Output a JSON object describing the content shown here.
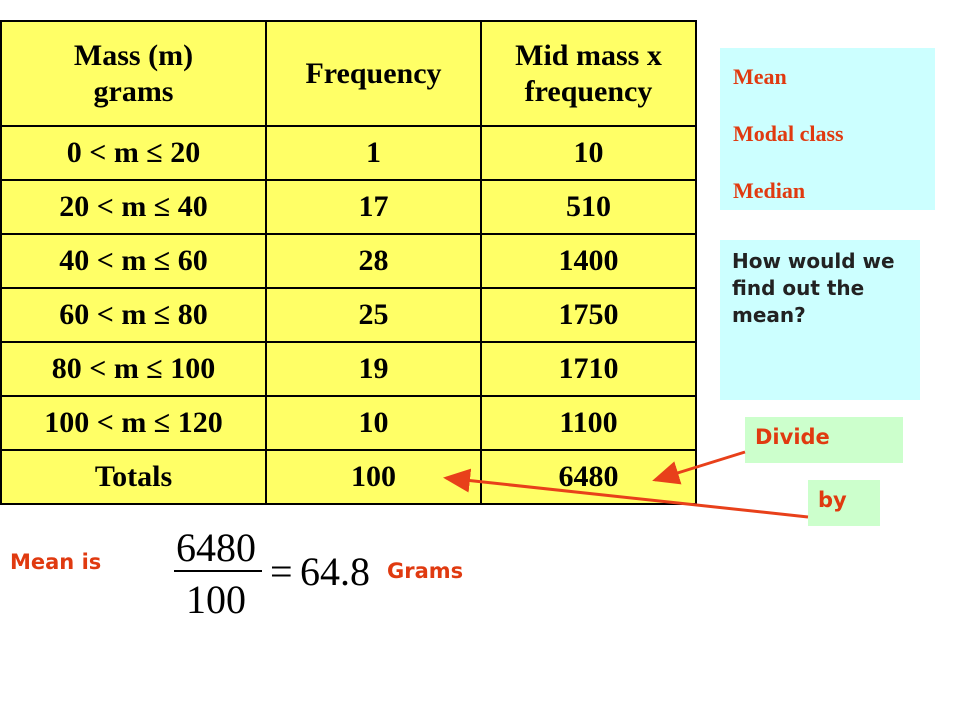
{
  "table": {
    "header": [
      "Mass (m) grams",
      "Frequency",
      "Mid mass x frequency"
    ],
    "rows": [
      [
        "0 < m ≤ 20",
        1,
        10
      ],
      [
        "20 < m ≤ 40",
        17,
        510
      ],
      [
        "40 < m ≤ 60",
        28,
        1400
      ],
      [
        "60 < m ≤ 80",
        25,
        1750
      ],
      [
        "80 < m ≤ 100",
        19,
        1710
      ],
      [
        "100 < m ≤ 120",
        10,
        1100
      ],
      [
        "Totals",
        100,
        6480
      ]
    ]
  },
  "topics": [
    "Mean",
    "Modal class",
    "Median"
  ],
  "question": "How would we find out the mean?",
  "hints": [
    "Divide",
    "by"
  ],
  "result": {
    "label": "Mean is",
    "numerator": "6480",
    "denominator": "100",
    "operator": "=",
    "value": "64.8",
    "unit": "Grams"
  }
}
